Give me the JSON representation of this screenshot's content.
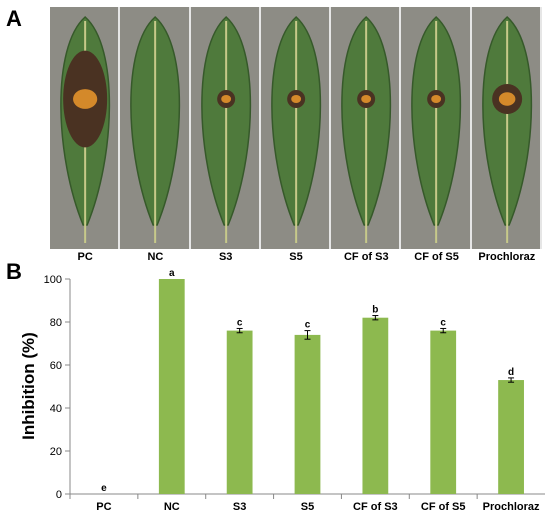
{
  "panel_a": {
    "letter": "A",
    "leaves": [
      {
        "label": "PC",
        "lesion": "large"
      },
      {
        "label": "NC",
        "lesion": "none"
      },
      {
        "label": "S3",
        "lesion": "small"
      },
      {
        "label": "S5",
        "lesion": "small"
      },
      {
        "label": "CF of S3",
        "lesion": "small"
      },
      {
        "label": "CF of S5",
        "lesion": "small"
      },
      {
        "label": "Prochloraz",
        "lesion": "medium"
      }
    ],
    "colors": {
      "leaf": "#4f7a3c",
      "leaf_dark": "#36592a",
      "midrib": "#c7c98a",
      "background": "#8d8c85",
      "lesion": "#4a3222",
      "spore": "#d4892a"
    }
  },
  "panel_b": {
    "letter": "B"
  },
  "chart_data": {
    "type": "bar",
    "categories": [
      "PC",
      "NC",
      "S3",
      "S5",
      "CF of S3",
      "CF of S5",
      "Prochloraz"
    ],
    "values": [
      0,
      100,
      76,
      74,
      82,
      76,
      53
    ],
    "errors": [
      0,
      0,
      1,
      2,
      1,
      1,
      1
    ],
    "letters": [
      "e",
      "a",
      "c",
      "c",
      "b",
      "c",
      "d"
    ],
    "ylabel": "Inhibition (%)",
    "xlabel": "",
    "ylim": [
      0,
      100
    ],
    "yticks": [
      "0",
      "20",
      "40",
      "60",
      "80",
      "100"
    ],
    "grid": false,
    "bar_color": "#8db94f"
  }
}
